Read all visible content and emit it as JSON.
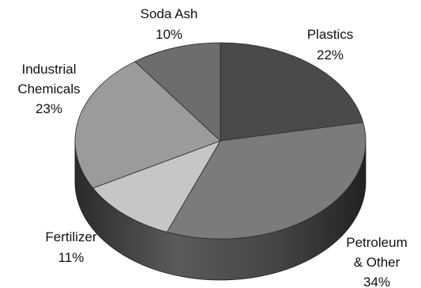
{
  "chart_data": {
    "type": "pie",
    "style": "3d",
    "title": "",
    "slices": [
      {
        "label": "Plastics",
        "value": 22,
        "value_text": "22%",
        "color": "#4a4a4a"
      },
      {
        "label": "Petroleum & Other",
        "label_lines": [
          "Petroleum",
          "& Other"
        ],
        "value": 34,
        "value_text": "34%",
        "color": "#7b7b7b"
      },
      {
        "label": "Fertilizer",
        "value": 11,
        "value_text": "11%",
        "color": "#c6c6c6"
      },
      {
        "label": "Industrial Chemicals",
        "label_lines": [
          "Industrial",
          "Chemicals"
        ],
        "value": 23,
        "value_text": "23%",
        "color": "#9b9b9b"
      },
      {
        "label": "Soda Ash",
        "value": 10,
        "value_text": "10%",
        "color": "#6d6d6d"
      }
    ]
  }
}
